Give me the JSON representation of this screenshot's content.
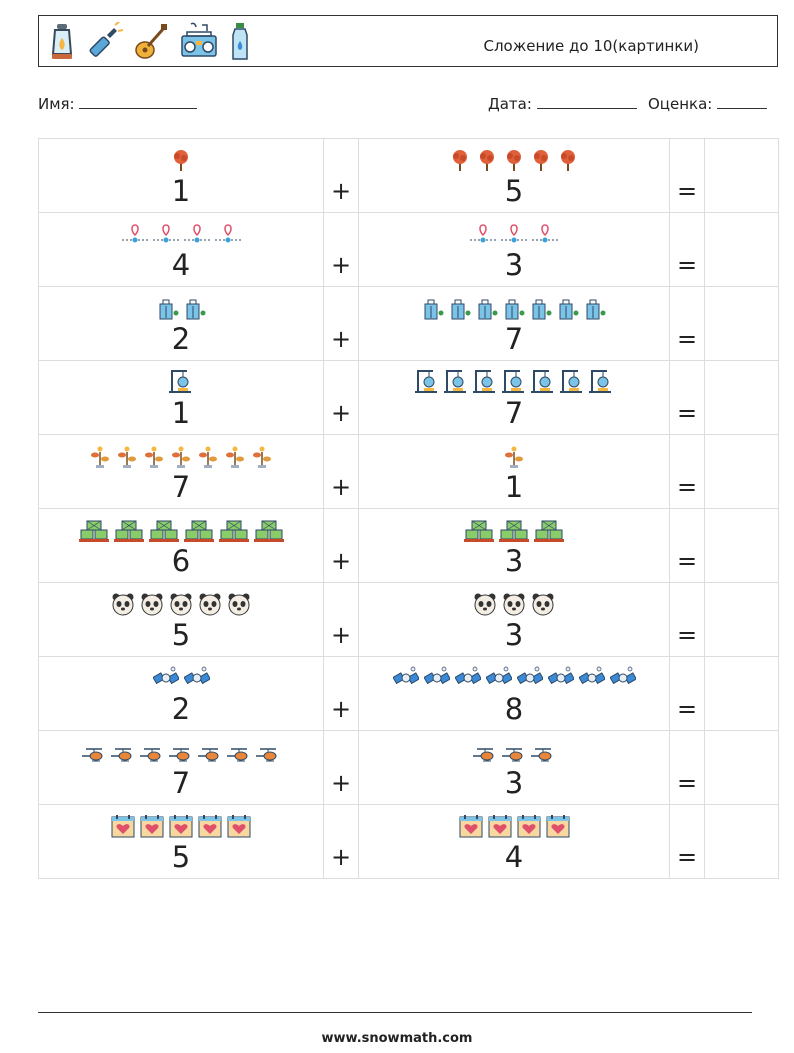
{
  "header": {
    "title": "Сложение до 10(картинки)",
    "icons": [
      "lantern-icon",
      "flashlight-icon",
      "guitar-icon",
      "boombox-icon",
      "water-bottle-icon"
    ]
  },
  "fields": {
    "name_label": "Имя:",
    "date_label": "Дата:",
    "grade_label": "Оценка:"
  },
  "operators": {
    "plus": "+",
    "equals": "="
  },
  "rows": [
    {
      "left": 1,
      "right": 5,
      "left_icon": "tree-icon",
      "right_icon": "tree-icon"
    },
    {
      "left": 4,
      "right": 3,
      "left_icon": "map-pin-route-icon",
      "right_icon": "map-pin-route-icon"
    },
    {
      "left": 2,
      "right": 7,
      "left_icon": "shopping-bag-icon",
      "right_icon": "shopping-bag-icon"
    },
    {
      "left": 1,
      "right": 7,
      "left_icon": "gym-station-icon",
      "right_icon": "gym-station-icon"
    },
    {
      "left": 7,
      "right": 1,
      "left_icon": "sprout-icon",
      "right_icon": "sprout-icon"
    },
    {
      "left": 6,
      "right": 3,
      "left_icon": "crates-stack-icon",
      "right_icon": "crates-stack-icon"
    },
    {
      "left": 5,
      "right": 3,
      "left_icon": "panda-icon",
      "right_icon": "panda-icon"
    },
    {
      "left": 2,
      "right": 8,
      "left_icon": "satellite-icon",
      "right_icon": "satellite-icon"
    },
    {
      "left": 7,
      "right": 3,
      "left_icon": "helicopter-icon",
      "right_icon": "helicopter-icon"
    },
    {
      "left": 5,
      "right": 4,
      "left_icon": "heart-calendar-icon",
      "right_icon": "heart-calendar-icon"
    }
  ],
  "footer": {
    "url": "www.snowmath.com"
  }
}
